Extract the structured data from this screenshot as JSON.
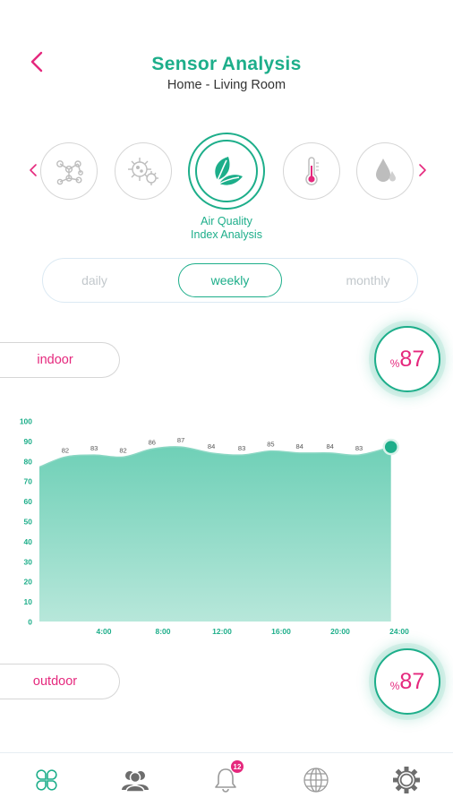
{
  "header": {
    "title": "Sensor Analysis",
    "subtitle": "Home - Living Room"
  },
  "sensors": {
    "items": [
      {
        "icon": "molecule-icon"
      },
      {
        "icon": "virus-icon"
      },
      {
        "icon": "leaf-icon",
        "selected": true
      },
      {
        "icon": "thermometer-icon"
      },
      {
        "icon": "humidity-drop-icon"
      }
    ],
    "selected_label": "Air Quality\nIndex Analysis"
  },
  "period": {
    "options": [
      "daily",
      "weekly",
      "monthly"
    ],
    "selected": "weekly"
  },
  "indoor": {
    "label": "indoor",
    "percent_sign": "%",
    "value": "87"
  },
  "outdoor": {
    "label": "outdoor",
    "percent_sign": "%",
    "value": "87"
  },
  "chart_data": {
    "type": "area",
    "x": [
      0,
      2,
      4,
      6,
      8,
      10,
      12,
      14,
      16,
      18,
      20,
      22,
      24
    ],
    "x_tick_labels": [
      "4:00",
      "8:00",
      "12:00",
      "16:00",
      "20:00",
      "24:00"
    ],
    "x_tick_values": [
      4,
      8,
      12,
      16,
      20,
      24
    ],
    "y_ticks": [
      0,
      10,
      20,
      30,
      40,
      50,
      60,
      70,
      80,
      90,
      100
    ],
    "ylim": [
      0,
      100
    ],
    "series": [
      {
        "points": [
          {
            "x": 0,
            "y": 77
          },
          {
            "x": 1.7,
            "y": 82,
            "label": "82"
          },
          {
            "x": 3.6,
            "y": 83,
            "label": "83"
          },
          {
            "x": 5.5,
            "y": 82,
            "label": "82"
          },
          {
            "x": 7.4,
            "y": 86,
            "label": "86"
          },
          {
            "x": 9.3,
            "y": 87,
            "label": "87"
          },
          {
            "x": 11.3,
            "y": 84,
            "label": "84"
          },
          {
            "x": 13.3,
            "y": 83,
            "label": "83"
          },
          {
            "x": 15.2,
            "y": 85,
            "label": "85"
          },
          {
            "x": 17.1,
            "y": 84,
            "label": "84"
          },
          {
            "x": 19.1,
            "y": 84,
            "label": "84"
          },
          {
            "x": 21.0,
            "y": 83,
            "label": "83"
          },
          {
            "x": 23.1,
            "y": 87
          }
        ],
        "color": "#1dae8a"
      }
    ],
    "grid": false
  },
  "nav": {
    "items": [
      {
        "icon": "clover-icon",
        "active": true
      },
      {
        "icon": "users-icon"
      },
      {
        "icon": "bell-icon",
        "badge": "12"
      },
      {
        "icon": "globe-icon"
      },
      {
        "icon": "gear-icon"
      }
    ]
  },
  "colors": {
    "accent": "#1dae8a",
    "pink": "#e5287d",
    "area_top": "#6fd0b7",
    "area_bottom": "#b7e7da",
    "icon_gray": "#6d6d6d"
  }
}
